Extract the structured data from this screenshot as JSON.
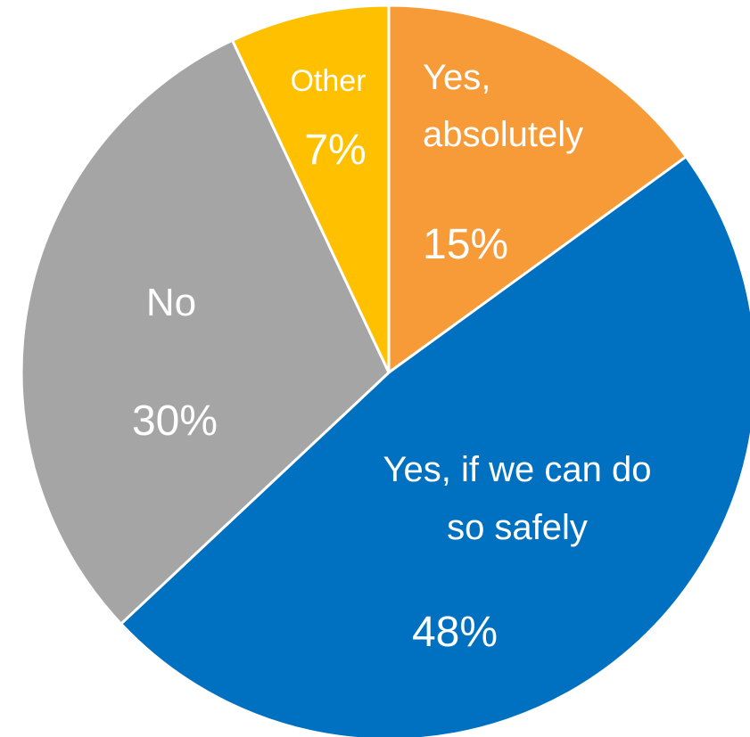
{
  "chart_data": {
    "type": "pie",
    "slices": [
      {
        "name_lines": [
          "Yes,",
          "absolutely"
        ],
        "value": 15,
        "label": "15%",
        "color": "#F79A38"
      },
      {
        "name_lines": [
          "Yes, if we can do",
          "so safely"
        ],
        "value": 48,
        "label": "48%",
        "color": "#0070C0"
      },
      {
        "name_lines": [
          "No"
        ],
        "value": 30,
        "label": "30%",
        "color": "#A5A5A5"
      },
      {
        "name_lines": [
          "Other"
        ],
        "value": 7,
        "label": "7%",
        "color": "#FFC000"
      }
    ]
  }
}
